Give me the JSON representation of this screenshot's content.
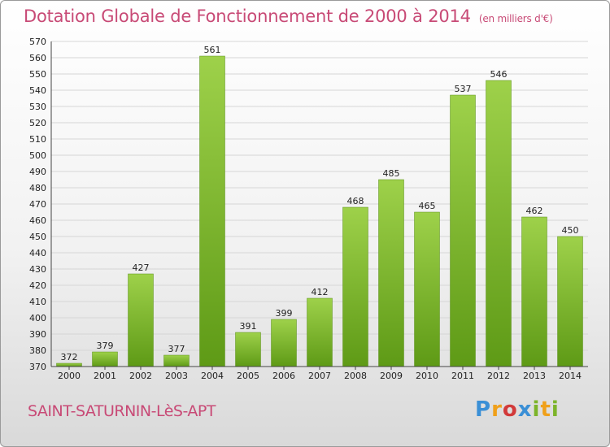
{
  "chart_data": {
    "type": "bar",
    "title": "Dotation Globale de Fonctionnement de 2000 à 2014",
    "subtitle": "(en milliers d'€)",
    "categories": [
      "2000",
      "2001",
      "2002",
      "2003",
      "2004",
      "2005",
      "2006",
      "2007",
      "2008",
      "2009",
      "2010",
      "2011",
      "2012",
      "2013",
      "2014"
    ],
    "values": [
      372,
      379,
      427,
      377,
      561,
      391,
      399,
      412,
      468,
      485,
      465,
      537,
      546,
      462,
      450
    ],
    "ylim": [
      370,
      570
    ],
    "ystep": 10,
    "grid": true,
    "bar_color": "#7cb42a"
  },
  "footer": {
    "commune": "SAINT-SATURNIN-LèS-APT",
    "logo": [
      "P",
      "r",
      "o",
      "x",
      "i",
      "t",
      "i"
    ]
  }
}
